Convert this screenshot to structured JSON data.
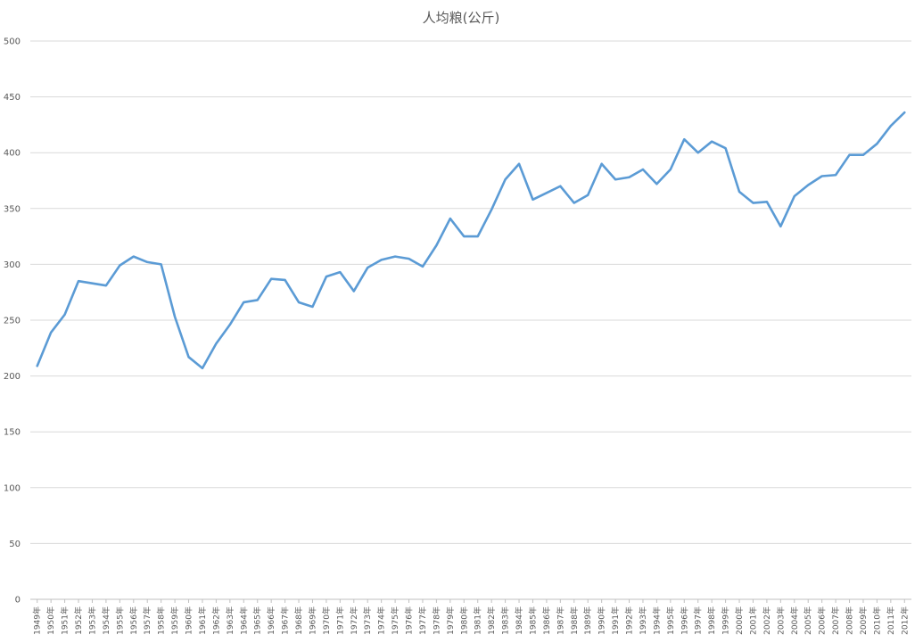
{
  "chart_data": {
    "type": "line",
    "title": "人均粮(公斤)",
    "xlabel": "",
    "ylabel": "",
    "ylim": [
      0,
      500
    ],
    "yticks": [
      0,
      50,
      100,
      150,
      200,
      250,
      300,
      350,
      400,
      450,
      500
    ],
    "grid": true,
    "legend": "none",
    "series_color": "#5b9bd5",
    "categories": [
      "1949年",
      "1950年",
      "1951年",
      "1952年",
      "1953年",
      "1954年",
      "1955年",
      "1956年",
      "1957年",
      "1958年",
      "1959年",
      "1960年",
      "1961年",
      "1962年",
      "1963年",
      "1964年",
      "1965年",
      "1966年",
      "1967年",
      "1968年",
      "1969年",
      "1970年",
      "1971年",
      "1972年",
      "1973年",
      "1974年",
      "1975年",
      "1976年",
      "1977年",
      "1978年",
      "1979年",
      "1980年",
      "1981年",
      "1982年",
      "1983年",
      "1984年",
      "1985年",
      "1986年",
      "1987年",
      "1988年",
      "1989年",
      "1990年",
      "1991年",
      "1992年",
      "1993年",
      "1994年",
      "1995年",
      "1996年",
      "1997年",
      "1998年",
      "1999年",
      "2000年",
      "2001年",
      "2002年",
      "2003年",
      "2004年",
      "2005年",
      "2006年",
      "2007年",
      "2008年",
      "2009年",
      "2010年",
      "2011年",
      "2012年"
    ],
    "series": [
      {
        "values": [
          209,
          239,
          255,
          285,
          283,
          281,
          299,
          307,
          302,
          300,
          253,
          217,
          207,
          229,
          246,
          266,
          268,
          287,
          286,
          266,
          262,
          289,
          293,
          276,
          297,
          304,
          307,
          305,
          298,
          317,
          341,
          325,
          325,
          349,
          376,
          390,
          358,
          364,
          370,
          355,
          362,
          390,
          376,
          378,
          385,
          372,
          385,
          412,
          400,
          410,
          404,
          365,
          355,
          356,
          334,
          361,
          371,
          379,
          380,
          398,
          398,
          408,
          424,
          436
        ]
      }
    ]
  }
}
